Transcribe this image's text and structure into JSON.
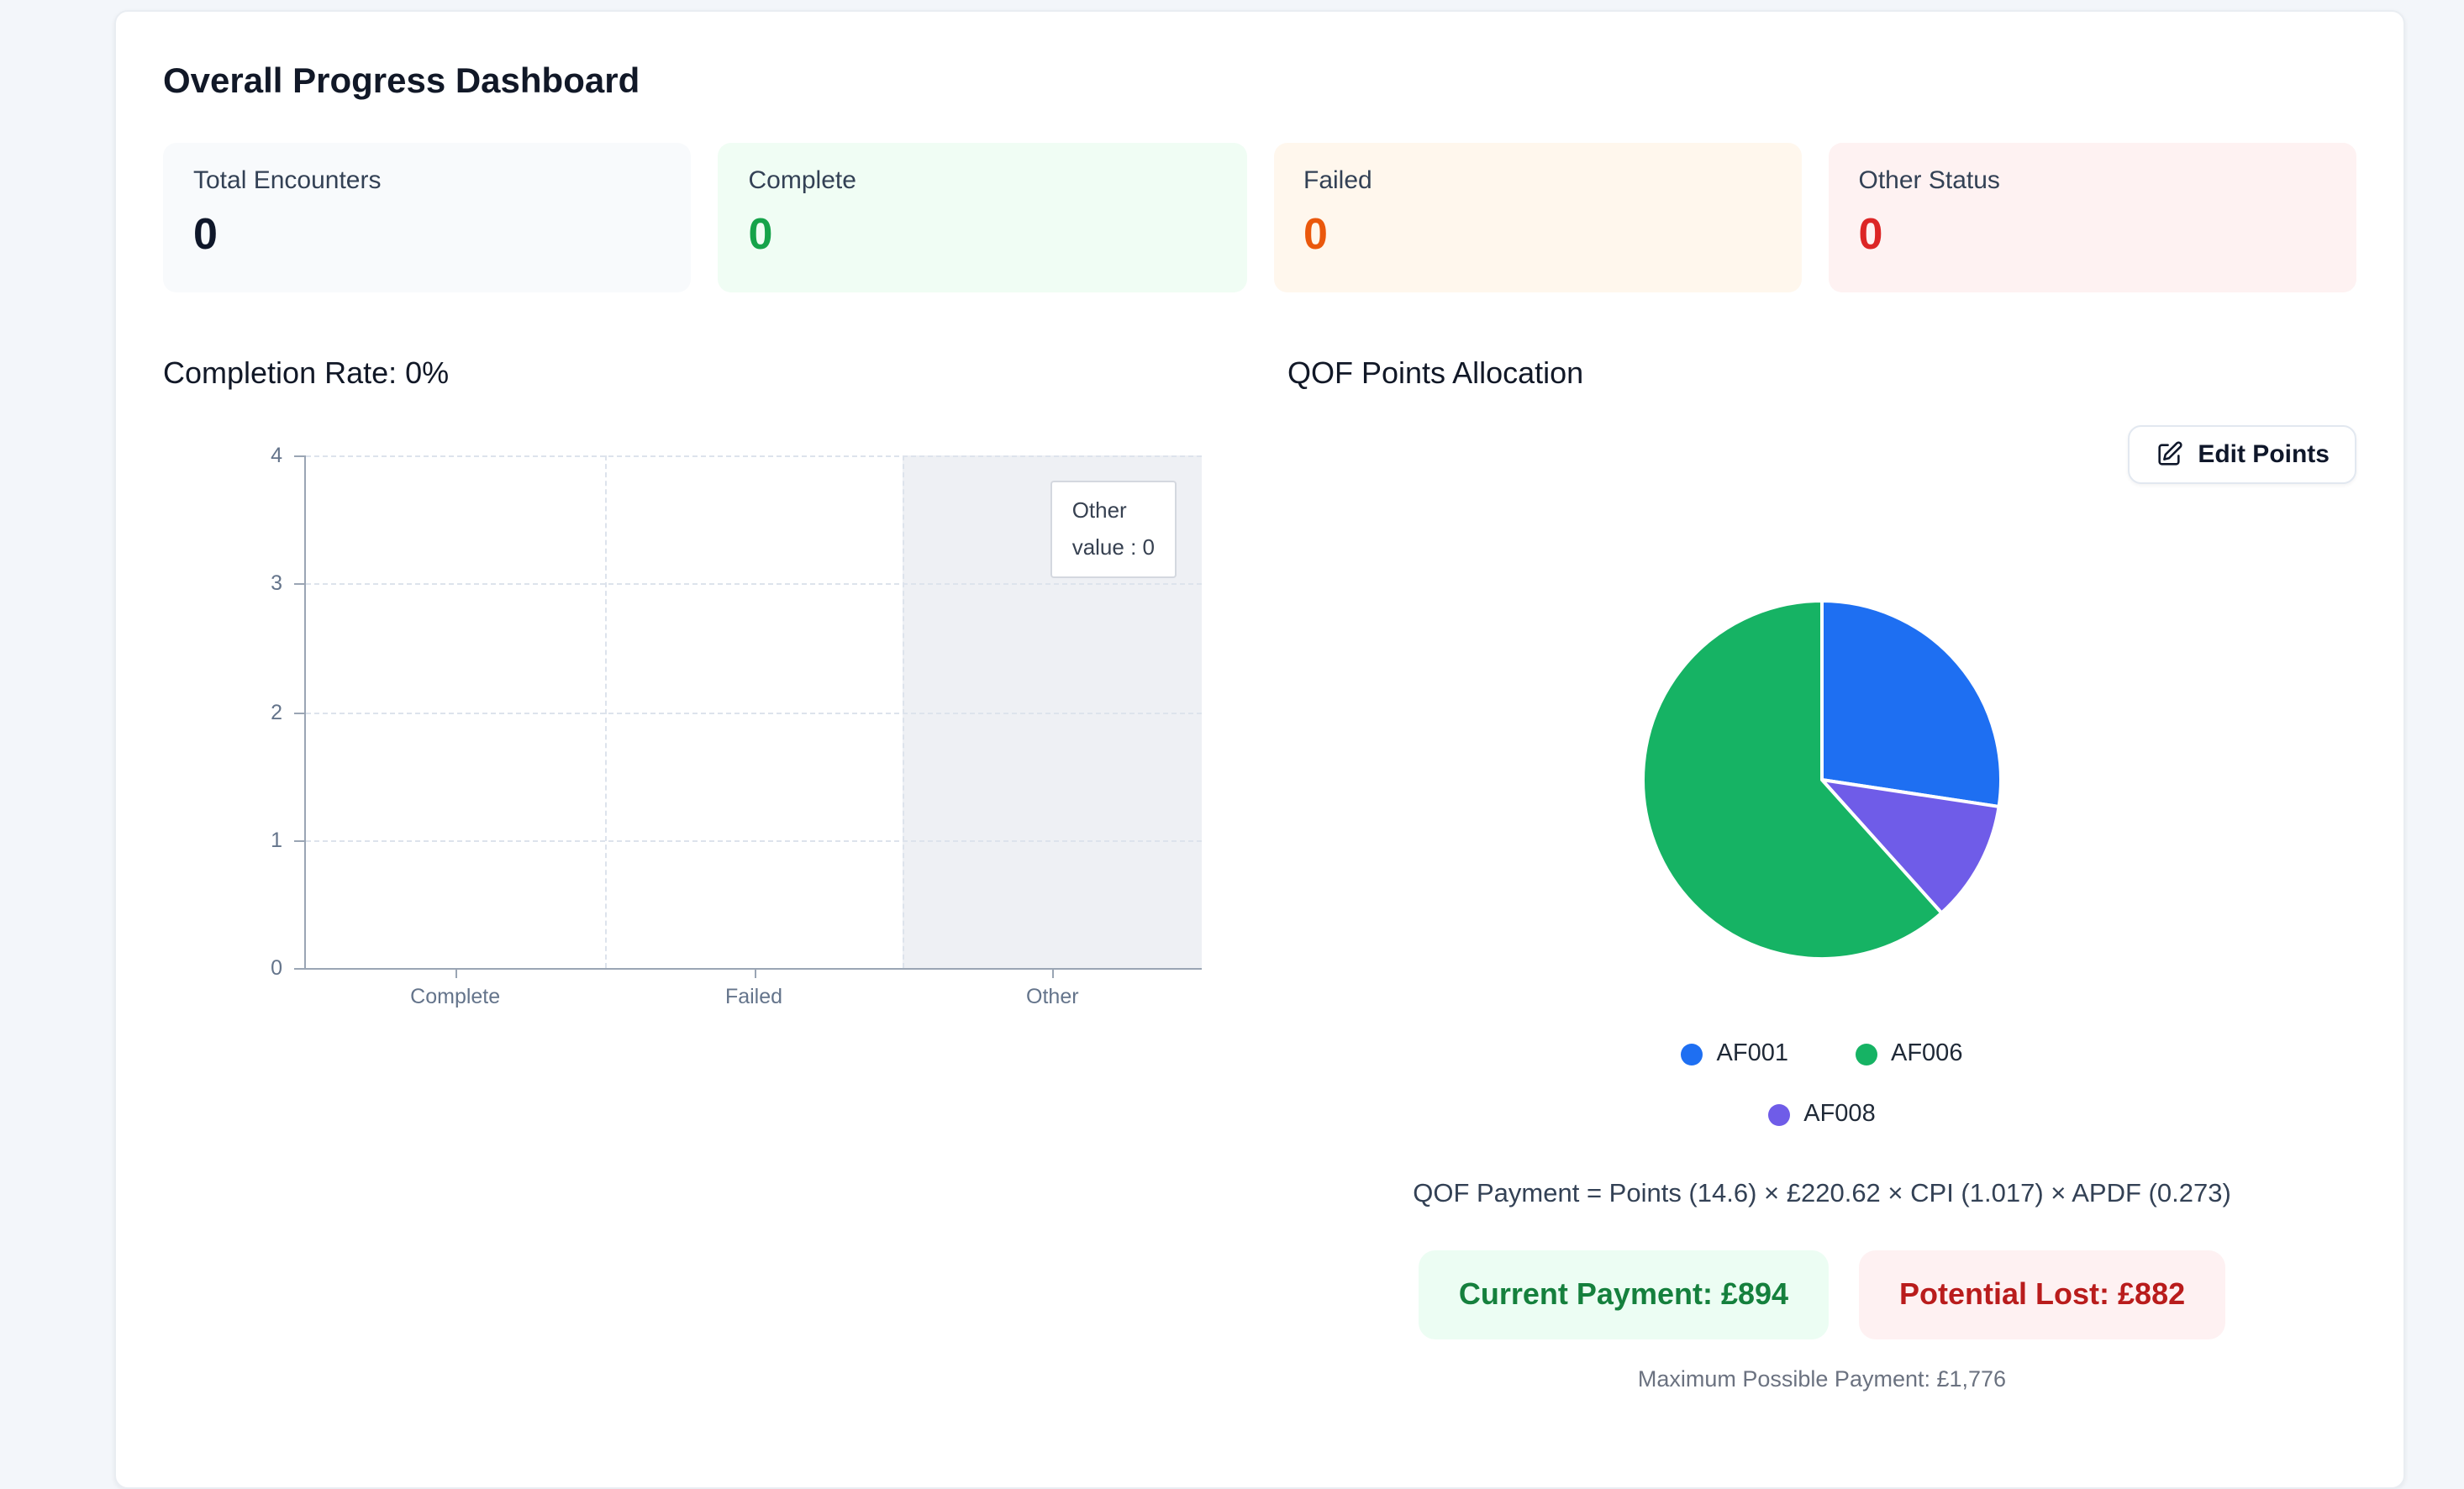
{
  "page": {
    "title": "Overall Progress Dashboard"
  },
  "stats": [
    {
      "label": "Total Encounters",
      "value": "0"
    },
    {
      "label": "Complete",
      "value": "0"
    },
    {
      "label": "Failed",
      "value": "0"
    },
    {
      "label": "Other Status",
      "value": "0"
    }
  ],
  "completion": {
    "heading": "Completion Rate: 0%"
  },
  "qof": {
    "heading": "QOF Points Allocation",
    "edit_button": "Edit Points",
    "formula": "QOF Payment = Points (14.6) × £220.62 × CPI (1.017) × APDF (0.273)",
    "current_payment": "Current Payment: £894",
    "potential_lost": "Potential Lost: £882",
    "max_payment": "Maximum Possible Payment: £1,776"
  },
  "colors": {
    "complete_green": "#16a34a",
    "failed_orange": "#ea580c",
    "other_red": "#dc2626",
    "badge_green_text": "#15803d",
    "badge_red_text": "#b91c1c"
  },
  "chart_data": [
    {
      "type": "bar",
      "title": "Completion Rate: 0%",
      "categories": [
        "Complete",
        "Failed",
        "Other"
      ],
      "values": [
        0,
        0,
        0
      ],
      "xlabel": "",
      "ylabel": "",
      "ylim": [
        0,
        4
      ],
      "yticks": [
        0,
        1,
        2,
        3,
        4
      ],
      "grid": true,
      "tooltip": {
        "title": "Other",
        "value_line": "value : 0",
        "highlighted_category": "Other"
      }
    },
    {
      "type": "pie",
      "title": "QOF Points Allocation",
      "legend_position": "bottom",
      "total_points": 14.6,
      "series": [
        {
          "name": "AF001",
          "value": 4,
          "color": "#1e6ff2"
        },
        {
          "name": "AF008",
          "value": 1.6,
          "color": "#6f5ce8"
        },
        {
          "name": "AF006",
          "value": 9,
          "color": "#16b364"
        }
      ],
      "legend_rows": [
        [
          "AF001",
          "AF006"
        ],
        [
          "AF008"
        ]
      ]
    }
  ]
}
